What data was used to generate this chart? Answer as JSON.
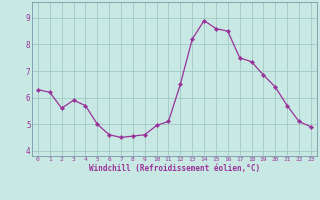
{
  "x": [
    0,
    1,
    2,
    3,
    4,
    5,
    6,
    7,
    8,
    9,
    10,
    11,
    12,
    13,
    14,
    15,
    16,
    17,
    18,
    19,
    20,
    21,
    22,
    23
  ],
  "y": [
    6.3,
    6.2,
    5.6,
    5.9,
    5.7,
    5.0,
    4.6,
    4.5,
    4.55,
    4.6,
    4.95,
    5.1,
    6.5,
    8.2,
    8.9,
    8.6,
    8.5,
    7.5,
    7.35,
    6.85,
    6.4,
    5.7,
    5.1,
    4.9
  ],
  "line_color": "#993399",
  "marker_color": "#993399",
  "bg_color": "#c8e8e4",
  "grid_color": "#a0c8c4",
  "text_color": "#993399",
  "xlabel": "Windchill (Refroidissement éolien,°C)",
  "xlim": [
    -0.5,
    23.5
  ],
  "ylim": [
    3.8,
    9.6
  ],
  "yticks": [
    4,
    5,
    6,
    7,
    8,
    9
  ],
  "xticks": [
    0,
    1,
    2,
    3,
    4,
    5,
    6,
    7,
    8,
    9,
    10,
    11,
    12,
    13,
    14,
    15,
    16,
    17,
    18,
    19,
    20,
    21,
    22,
    23
  ]
}
